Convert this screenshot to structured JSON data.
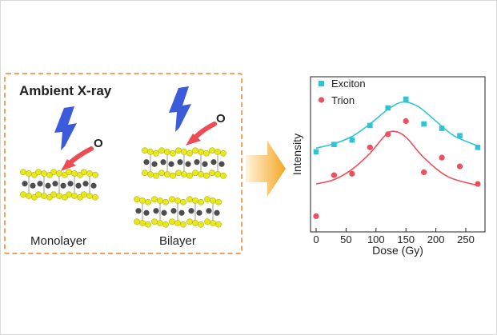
{
  "schematic": {
    "ambient_label": "Ambient X-ray",
    "oxygen_label_1": "O",
    "oxygen_label_2": "O",
    "monolayer_label": "Monolayer",
    "bilayer_label": "Bilayer"
  },
  "colors": {
    "exciton": "#2ec4d6",
    "trion": "#ec4f5f",
    "xray": "#3b5bdb",
    "oxygen_arrow": "#ee4b55",
    "sulfur": "#e8e81e",
    "metal": "#4d4d4d",
    "panel_border": "#f0a060",
    "process_arrow": "#f5a623"
  },
  "chart_data": {
    "type": "scatter",
    "xlabel": "Dose (Gy)",
    "ylabel": "Intensity",
    "xlim": [
      -5,
      280
    ],
    "ylim": [
      0,
      1
    ],
    "xticks": [
      0,
      50,
      100,
      150,
      200,
      250
    ],
    "y_tick_labels": false,
    "legend_position": "top-left",
    "series": [
      {
        "name": "Exciton",
        "marker": "square",
        "x": [
          0,
          30,
          60,
          90,
          120,
          150,
          180,
          210,
          240,
          270
        ],
        "y": [
          0.52,
          0.57,
          0.6,
          0.7,
          0.82,
          0.88,
          0.71,
          0.68,
          0.63,
          0.55
        ],
        "fit": [
          [
            0,
            0.545
          ],
          [
            30,
            0.575
          ],
          [
            60,
            0.625
          ],
          [
            90,
            0.71
          ],
          [
            120,
            0.81
          ],
          [
            145,
            0.86
          ],
          [
            170,
            0.83
          ],
          [
            200,
            0.73
          ],
          [
            230,
            0.63
          ],
          [
            270,
            0.56
          ]
        ]
      },
      {
        "name": "Trion",
        "marker": "circle",
        "x": [
          0,
          30,
          60,
          90,
          120,
          150,
          180,
          210,
          240,
          270
        ],
        "y": [
          0.08,
          0.36,
          0.37,
          0.55,
          0.64,
          0.73,
          0.38,
          0.48,
          0.42,
          0.3
        ],
        "fit": [
          [
            0,
            0.3
          ],
          [
            30,
            0.33
          ],
          [
            60,
            0.4
          ],
          [
            90,
            0.51
          ],
          [
            115,
            0.63
          ],
          [
            130,
            0.66
          ],
          [
            150,
            0.62
          ],
          [
            180,
            0.48
          ],
          [
            220,
            0.35
          ],
          [
            270,
            0.29
          ]
        ]
      }
    ]
  }
}
